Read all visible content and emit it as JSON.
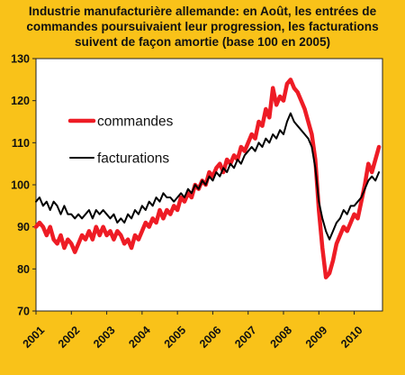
{
  "title_lines": [
    "Industrie manufacturière allemande: en Août, les entrées de",
    "commandes  poursuivaient leur progression, les facturations",
    "suivent de façon amortie (base 100 en 2005)"
  ],
  "chart_data": {
    "type": "line",
    "title": "Industrie manufacturière allemande: en Août, les entrées de commandes  poursuivaient leur progression, les facturations suivent de façon amortie (base 100 en 2005)",
    "ylim": [
      70,
      130
    ],
    "yticks": [
      70,
      80,
      90,
      100,
      110,
      120,
      130
    ],
    "xlim": [
      2001,
      2010.8
    ],
    "xticks": [
      2001,
      2002,
      2003,
      2004,
      2005,
      2006,
      2007,
      2008,
      2009,
      2010
    ],
    "xtick_labels": [
      "2001",
      "2002",
      "2003",
      "2004",
      "2005",
      "2006",
      "2007",
      "2008",
      "2009",
      "2010"
    ],
    "grid": false,
    "legend_position": "upper-left",
    "series": [
      {
        "name": "commandes",
        "color": "#ee1c25",
        "x": [
          2001.0,
          2001.1,
          2001.2,
          2001.3,
          2001.4,
          2001.5,
          2001.6,
          2001.7,
          2001.8,
          2001.9,
          2002.0,
          2002.1,
          2002.2,
          2002.3,
          2002.4,
          2002.5,
          2002.6,
          2002.7,
          2002.8,
          2002.9,
          2003.0,
          2003.1,
          2003.2,
          2003.3,
          2003.4,
          2003.5,
          2003.6,
          2003.7,
          2003.8,
          2003.9,
          2004.0,
          2004.1,
          2004.2,
          2004.3,
          2004.4,
          2004.5,
          2004.6,
          2004.7,
          2004.8,
          2004.9,
          2005.0,
          2005.1,
          2005.2,
          2005.3,
          2005.4,
          2005.5,
          2005.6,
          2005.7,
          2005.8,
          2005.9,
          2006.0,
          2006.1,
          2006.2,
          2006.3,
          2006.4,
          2006.5,
          2006.6,
          2006.7,
          2006.8,
          2006.9,
          2007.0,
          2007.1,
          2007.2,
          2007.3,
          2007.4,
          2007.5,
          2007.6,
          2007.7,
          2007.8,
          2007.9,
          2008.0,
          2008.1,
          2008.2,
          2008.3,
          2008.4,
          2008.5,
          2008.6,
          2008.7,
          2008.8,
          2008.9,
          2009.0,
          2009.1,
          2009.2,
          2009.3,
          2009.4,
          2009.5,
          2009.6,
          2009.7,
          2009.8,
          2009.9,
          2010.0,
          2010.1,
          2010.2,
          2010.3,
          2010.4,
          2010.5,
          2010.6,
          2010.7
        ],
        "values": [
          90,
          91,
          90,
          88,
          90,
          87,
          86,
          88,
          85,
          87,
          86,
          84,
          86,
          88,
          87,
          89,
          87,
          90,
          88,
          90,
          88,
          89,
          87,
          89,
          88,
          86,
          87,
          85,
          88,
          87,
          89,
          91,
          90,
          92,
          91,
          94,
          92,
          94,
          93,
          95,
          94,
          97,
          96,
          98,
          97,
          100,
          99,
          101,
          100,
          103,
          102,
          104,
          105,
          103,
          106,
          105,
          107,
          106,
          109,
          108,
          110,
          112,
          111,
          115,
          114,
          118,
          116,
          123,
          119,
          121,
          120,
          124,
          125,
          123,
          122,
          120,
          118,
          115,
          112,
          106,
          94,
          85,
          78,
          79,
          82,
          86,
          88,
          90,
          89,
          91,
          93,
          92,
          96,
          100,
          105,
          103,
          106,
          109
        ]
      },
      {
        "name": "facturations",
        "color": "#000000",
        "x": [
          2001.0,
          2001.1,
          2001.2,
          2001.3,
          2001.4,
          2001.5,
          2001.6,
          2001.7,
          2001.8,
          2001.9,
          2002.0,
          2002.1,
          2002.2,
          2002.3,
          2002.4,
          2002.5,
          2002.6,
          2002.7,
          2002.8,
          2002.9,
          2003.0,
          2003.1,
          2003.2,
          2003.3,
          2003.4,
          2003.5,
          2003.6,
          2003.7,
          2003.8,
          2003.9,
          2004.0,
          2004.1,
          2004.2,
          2004.3,
          2004.4,
          2004.5,
          2004.6,
          2004.7,
          2004.8,
          2004.9,
          2005.0,
          2005.1,
          2005.2,
          2005.3,
          2005.4,
          2005.5,
          2005.6,
          2005.7,
          2005.8,
          2005.9,
          2006.0,
          2006.1,
          2006.2,
          2006.3,
          2006.4,
          2006.5,
          2006.6,
          2006.7,
          2006.8,
          2006.9,
          2007.0,
          2007.1,
          2007.2,
          2007.3,
          2007.4,
          2007.5,
          2007.6,
          2007.7,
          2007.8,
          2007.9,
          2008.0,
          2008.1,
          2008.2,
          2008.3,
          2008.4,
          2008.5,
          2008.6,
          2008.7,
          2008.8,
          2008.9,
          2009.0,
          2009.1,
          2009.2,
          2009.3,
          2009.4,
          2009.5,
          2009.6,
          2009.7,
          2009.8,
          2009.9,
          2010.0,
          2010.1,
          2010.2,
          2010.3,
          2010.4,
          2010.5,
          2010.6,
          2010.7
        ],
        "values": [
          96,
          97,
          95,
          96,
          94,
          96,
          95,
          93,
          95,
          93,
          93,
          92,
          93,
          92,
          93,
          94,
          92,
          94,
          93,
          94,
          93,
          92,
          93,
          91,
          92,
          91,
          93,
          92,
          94,
          93,
          95,
          94,
          96,
          95,
          97,
          96,
          98,
          97,
          97,
          96,
          97,
          98,
          97,
          99,
          98,
          100,
          99,
          101,
          100,
          102,
          101,
          103,
          102,
          104,
          103,
          105,
          104,
          106,
          105,
          107,
          108,
          109,
          108,
          110,
          109,
          111,
          110,
          112,
          111,
          113,
          112,
          115,
          117,
          115,
          114,
          113,
          112,
          111,
          109,
          104,
          96,
          92,
          89,
          87,
          89,
          91,
          92,
          94,
          93,
          95,
          95,
          96,
          97,
          99,
          101,
          102,
          101,
          103
        ]
      }
    ]
  }
}
